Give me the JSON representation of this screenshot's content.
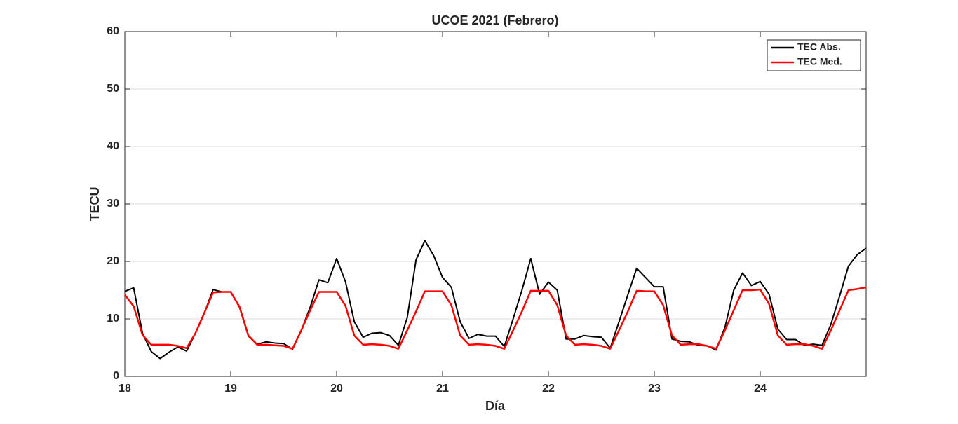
{
  "chart_data": {
    "type": "line",
    "title": "UCOE 2021 (Febrero)",
    "xlabel": "Día",
    "ylabel": "TECU",
    "x": [
      18,
      18.0833,
      18.1667,
      18.25,
      18.3333,
      18.4167,
      18.5,
      18.5833,
      18.6667,
      18.75,
      18.8333,
      18.9167,
      19,
      19.0833,
      19.1667,
      19.25,
      19.3333,
      19.4167,
      19.5,
      19.5833,
      19.6667,
      19.75,
      19.8333,
      19.9167,
      20,
      20.0833,
      20.1667,
      20.25,
      20.3333,
      20.4167,
      20.5,
      20.5833,
      20.6667,
      20.75,
      20.8333,
      20.9167,
      21,
      21.0833,
      21.1667,
      21.25,
      21.3333,
      21.4167,
      21.5,
      21.5833,
      21.6667,
      21.75,
      21.8333,
      21.9167,
      22,
      22.0833,
      22.1667,
      22.25,
      22.3333,
      22.4167,
      22.5,
      22.5833,
      22.6667,
      22.75,
      22.8333,
      22.9167,
      23,
      23.0833,
      23.1667,
      23.25,
      23.3333,
      23.4167,
      23.5,
      23.5833,
      23.6667,
      23.75,
      23.8333,
      23.9167,
      24,
      24.0833,
      24.1667,
      24.25,
      24.3333,
      24.4167,
      24.5,
      24.5833,
      24.6667,
      24.75,
      24.8333,
      24.9167,
      25
    ],
    "series": [
      {
        "name": "TEC Abs.",
        "color": "#000000",
        "values": [
          14.8,
          15.4,
          7.5,
          4.3,
          3.1,
          4.2,
          5.1,
          4.4,
          7.5,
          11,
          15.1,
          14.7,
          14.7,
          12,
          7,
          5.6,
          6,
          5.8,
          5.7,
          4.7,
          8,
          12,
          16.8,
          16.3,
          20.5,
          16.5,
          9.5,
          6.8,
          7.5,
          7.6,
          7.1,
          5.4,
          10.2,
          20.3,
          23.6,
          21,
          17.2,
          15.5,
          9.5,
          6.6,
          7.3,
          7,
          7,
          5.2,
          10,
          15,
          20.5,
          14.3,
          16.4,
          15,
          6.5,
          6.5,
          7.1,
          6.9,
          6.8,
          4.9,
          9.5,
          14.2,
          18.8,
          17.2,
          15.6,
          15.6,
          6.5,
          6.1,
          6,
          5.4,
          5.3,
          4.6,
          8.5,
          15,
          18,
          15.8,
          16.5,
          14.3,
          8.2,
          6.4,
          6.4,
          5.4,
          5.6,
          5.4,
          9,
          14,
          19.2,
          21.2,
          22.3
        ]
      },
      {
        "name": "TEC Med.",
        "color": "#ff0000",
        "values": [
          14.2,
          12.2,
          7.2,
          5.5,
          5.5,
          5.5,
          5.3,
          4.9,
          7.5,
          11,
          14.6,
          14.7,
          14.7,
          12.1,
          7.1,
          5.5,
          5.5,
          5.4,
          5.3,
          4.8,
          8,
          11.5,
          14.7,
          14.7,
          14.7,
          12.3,
          7.1,
          5.5,
          5.6,
          5.5,
          5.3,
          4.8,
          8,
          11.3,
          14.8,
          14.8,
          14.8,
          12.4,
          7.1,
          5.5,
          5.6,
          5.5,
          5.3,
          4.8,
          8,
          11.3,
          14.9,
          14.9,
          14.9,
          12.4,
          7.1,
          5.5,
          5.6,
          5.5,
          5.3,
          4.8,
          8,
          11.3,
          14.9,
          14.8,
          14.8,
          12.4,
          7.1,
          5.5,
          5.6,
          5.6,
          5.3,
          4.8,
          8,
          11.5,
          15,
          15,
          15.1,
          12.6,
          7.1,
          5.5,
          5.6,
          5.6,
          5.3,
          4.8,
          8,
          11.5,
          15,
          15.2,
          15.5
        ]
      }
    ],
    "xlim": [
      18,
      25
    ],
    "xticks": [
      18,
      19,
      20,
      21,
      22,
      23,
      24
    ],
    "ylim": [
      0,
      60
    ],
    "yticks": [
      0,
      10,
      20,
      30,
      40,
      50,
      60
    ],
    "grid": true,
    "legend": "northeast"
  }
}
